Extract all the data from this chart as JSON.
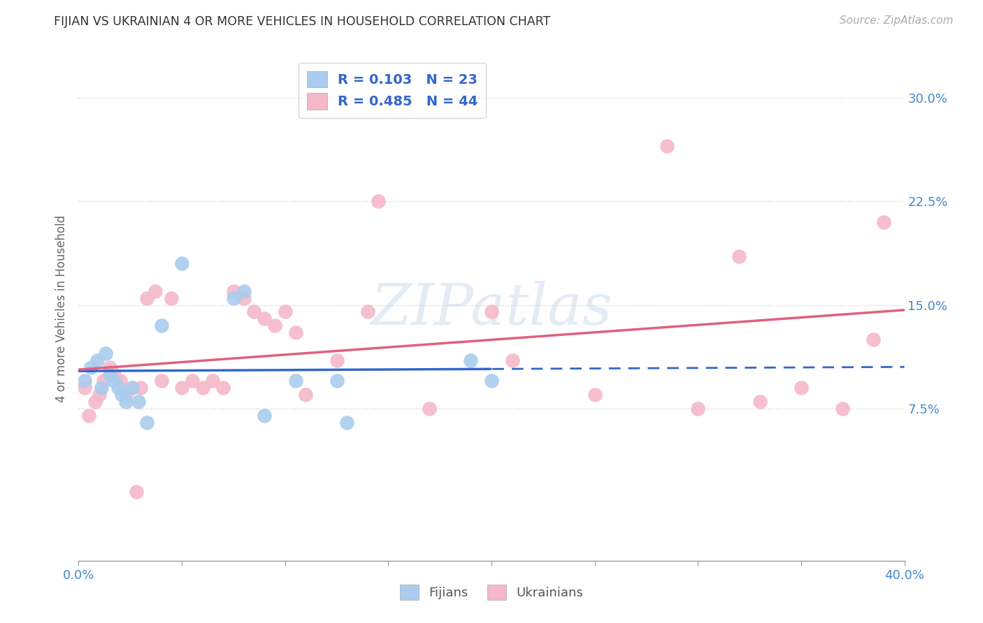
{
  "title": "FIJIAN VS UKRAINIAN 4 OR MORE VEHICLES IN HOUSEHOLD CORRELATION CHART",
  "source": "Source: ZipAtlas.com",
  "ylabel": "4 or more Vehicles in Household",
  "ytick_vals": [
    7.5,
    15.0,
    22.5,
    30.0
  ],
  "ytick_labels_right": [
    "7.5%",
    "15.0%",
    "22.5%",
    "30.0%"
  ],
  "xlim": [
    0.0,
    40.0
  ],
  "ylim": [
    -3.5,
    33.0
  ],
  "background_color": "#ffffff",
  "grid_color": "#cccccc",
  "watermark_text": "ZIPatlas",
  "legend_fijian_R": "0.103",
  "legend_fijian_N": "23",
  "legend_ukrainian_R": "0.485",
  "legend_ukrainian_N": "44",
  "fijian_color": "#aaccee",
  "ukrainian_color": "#f5b8c8",
  "fijian_line_color": "#3366cc",
  "ukrainian_line_color": "#e06080",
  "fijian_points_x": [
    0.3,
    0.6,
    0.9,
    1.1,
    1.3,
    1.5,
    1.7,
    1.9,
    2.1,
    2.3,
    2.6,
    2.9,
    3.3,
    4.0,
    5.0,
    7.5,
    8.0,
    9.0,
    10.5,
    12.5,
    13.0,
    19.0,
    20.0
  ],
  "fijian_points_y": [
    9.5,
    10.5,
    11.0,
    9.0,
    11.5,
    10.0,
    9.5,
    9.0,
    8.5,
    8.0,
    9.0,
    8.0,
    6.5,
    13.5,
    18.0,
    15.5,
    16.0,
    7.0,
    9.5,
    9.5,
    6.5,
    11.0,
    9.5
  ],
  "ukrainian_points_x": [
    0.3,
    0.5,
    0.8,
    1.0,
    1.2,
    1.5,
    1.7,
    2.0,
    2.3,
    2.6,
    3.0,
    3.3,
    3.7,
    4.0,
    4.5,
    5.0,
    5.5,
    6.0,
    6.5,
    7.0,
    7.5,
    8.0,
    8.5,
    9.0,
    9.5,
    10.0,
    10.5,
    11.0,
    12.5,
    14.0,
    17.0,
    20.0,
    21.0,
    25.0,
    28.5,
    30.0,
    32.0,
    33.0,
    35.0,
    37.0,
    38.5,
    39.0,
    14.5,
    2.8
  ],
  "ukrainian_points_y": [
    9.0,
    7.0,
    8.0,
    8.5,
    9.5,
    10.5,
    10.0,
    9.5,
    8.5,
    9.0,
    9.0,
    15.5,
    16.0,
    9.5,
    15.5,
    9.0,
    9.5,
    9.0,
    9.5,
    9.0,
    16.0,
    15.5,
    14.5,
    14.0,
    13.5,
    14.5,
    13.0,
    8.5,
    11.0,
    14.5,
    7.5,
    14.5,
    11.0,
    8.5,
    26.5,
    7.5,
    18.5,
    8.0,
    9.0,
    7.5,
    12.5,
    21.0,
    22.5,
    1.5
  ],
  "fijian_solid_xmax": 20.0,
  "ukrainian_solid_xmax": 40.0,
  "xtick_positions": [
    0,
    5,
    10,
    15,
    20,
    25,
    30,
    35,
    40
  ]
}
